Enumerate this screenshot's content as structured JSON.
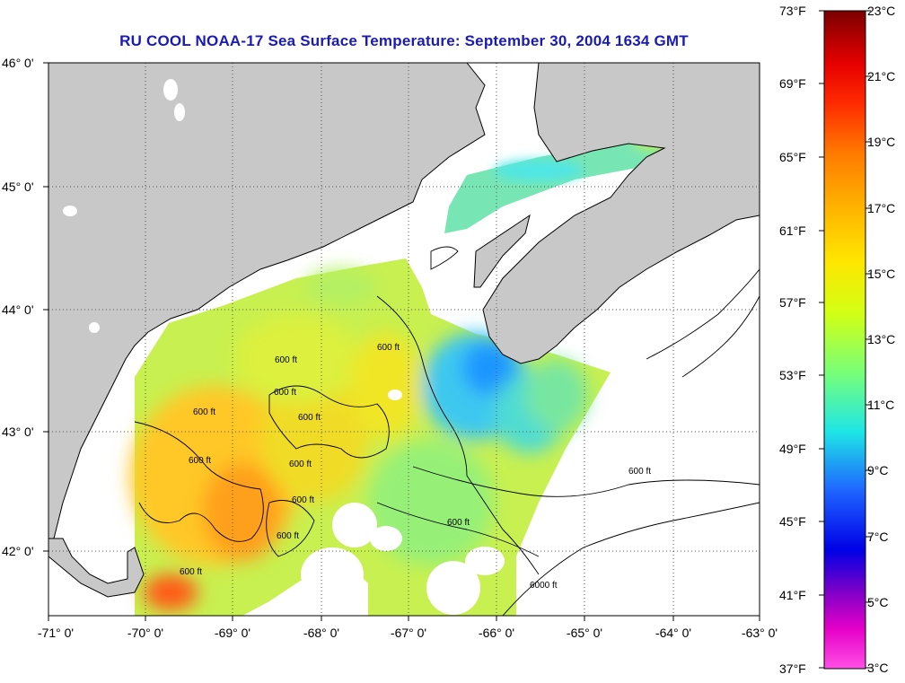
{
  "title": "RU COOL  NOAA-17  Sea Surface Temperature:  September 30, 2004 1634 GMT",
  "map": {
    "lat_labels": [
      "46° 0'",
      "45° 0'",
      "44° 0'",
      "43° 0'",
      "42° 0'"
    ],
    "lon_labels": [
      "-71° 0'",
      "-70° 0'",
      "-69° 0'",
      "-68° 0'",
      "-67° 0'",
      "-66° 0'",
      "-65° 0'",
      "-64° 0'",
      "-63° 0'"
    ],
    "contour_labels": [
      "600 ft",
      "600 ft",
      "600 ft",
      "600 ft",
      "600 ft",
      "600 ft",
      "600 ft",
      "600 ft",
      "600 ft",
      "600 ft",
      "600 ft",
      "600 ft",
      "6000 ft"
    ],
    "colors": {
      "land": "#c8c8c8",
      "ocean_no_data": "#ffffff",
      "grid": "#555555"
    }
  },
  "colorbar": {
    "fahrenheit_labels": [
      "73°F",
      "69°F",
      "65°F",
      "61°F",
      "57°F",
      "53°F",
      "49°F",
      "45°F",
      "41°F",
      "37°F"
    ],
    "celsius_labels": [
      "23°C",
      "21°C",
      "19°C",
      "17°C",
      "15°C",
      "13°C",
      "11°C",
      "9°C",
      "7°C",
      "5°C",
      "3°C"
    ],
    "range_celsius": [
      3,
      23
    ],
    "gradient_colors": [
      "#7a0000",
      "#e60000",
      "#ff2a00",
      "#ff7d00",
      "#ffb400",
      "#ffe600",
      "#d2ff14",
      "#78ff78",
      "#1ee6e6",
      "#1e64ff",
      "#0000e6",
      "#7800c8",
      "#e600c8",
      "#ff50e6"
    ]
  }
}
